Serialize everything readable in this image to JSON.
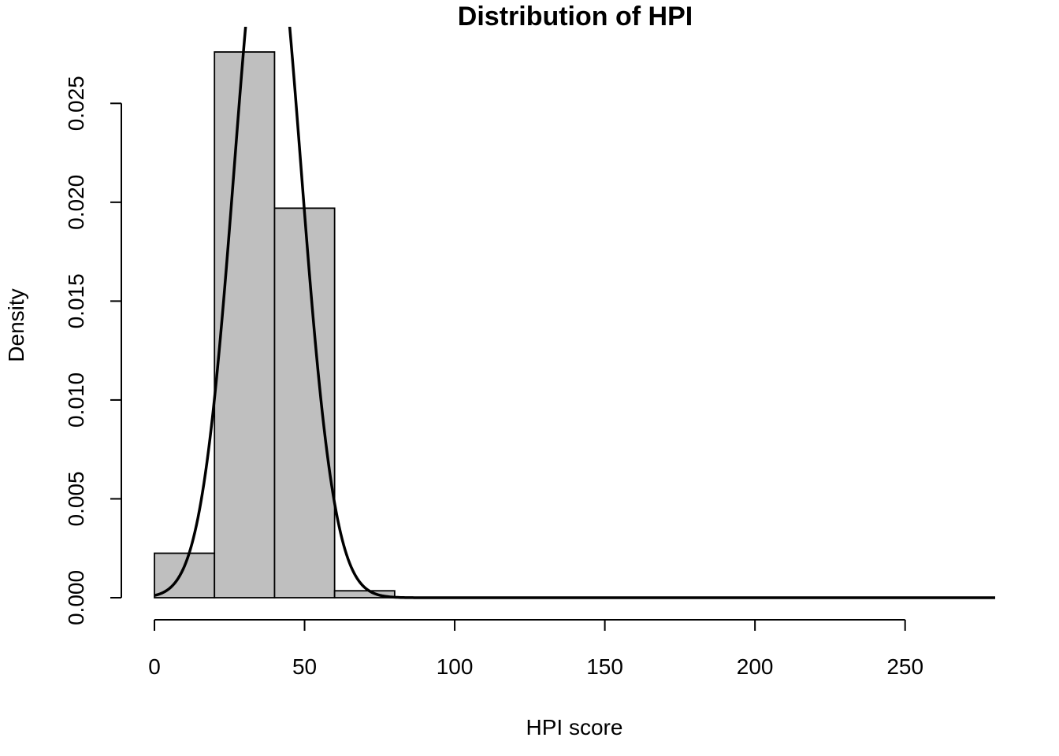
{
  "chart_data": {
    "type": "bar",
    "title": "Distribution of HPI",
    "xlabel": "HPI score",
    "ylabel": "Density",
    "xlim": [
      0,
      280
    ],
    "ylim": [
      0,
      0.0276
    ],
    "x_ticks": [
      "0",
      "50",
      "100",
      "150",
      "200",
      "250"
    ],
    "x_tick_values": [
      0,
      50,
      100,
      150,
      200,
      250
    ],
    "y_ticks": [
      "0.000",
      "0.005",
      "0.010",
      "0.015",
      "0.020",
      "0.025"
    ],
    "y_tick_values": [
      0,
      0.005,
      0.01,
      0.015,
      0.02,
      0.025
    ],
    "bins": [
      {
        "from": 0,
        "to": 20,
        "density": 0.00225
      },
      {
        "from": 20,
        "to": 40,
        "density": 0.0276
      },
      {
        "from": 40,
        "to": 60,
        "density": 0.0197
      },
      {
        "from": 60,
        "to": 80,
        "density": 0.00035
      },
      {
        "from": 80,
        "to": 100,
        "density": 0
      },
      {
        "from": 100,
        "to": 120,
        "density": 0
      },
      {
        "from": 120,
        "to": 140,
        "density": 0
      },
      {
        "from": 140,
        "to": 160,
        "density": 0
      },
      {
        "from": 160,
        "to": 180,
        "density": 0
      },
      {
        "from": 180,
        "to": 200,
        "density": 0
      },
      {
        "from": 200,
        "to": 220,
        "density": 0
      },
      {
        "from": 220,
        "to": 240,
        "density": 0
      },
      {
        "from": 240,
        "to": 260,
        "density": 0
      },
      {
        "from": 260,
        "to": 280,
        "density": 0
      }
    ],
    "overlay_curve": {
      "kind": "normal density",
      "mean": 37.7,
      "sd": 11.1
    },
    "grid": false,
    "legend": "none"
  }
}
